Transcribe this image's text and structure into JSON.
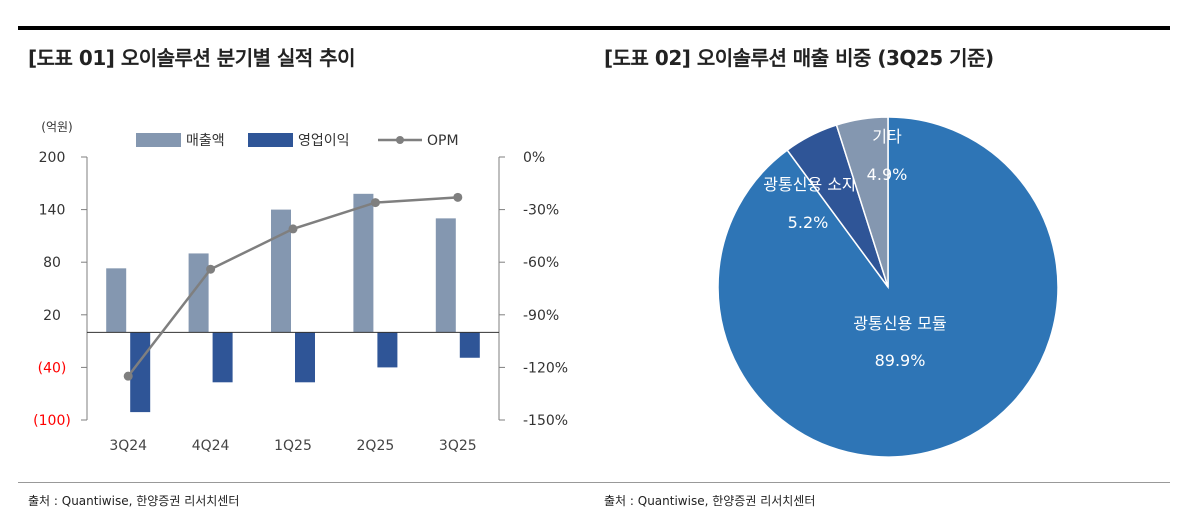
{
  "charts": {
    "left": {
      "title": "[도표 01] 오이솔루션 분기별 실적 추이",
      "source": "출처 : Quantiwise, 한양증권 리서치센터"
    },
    "right": {
      "title": "[도표 02] 오이솔루션 매출 비중 (3Q25 기준)",
      "source": "출처 : Quantiwise, 한양증권 리서치센터"
    }
  },
  "chart_data": [
    {
      "type": "bar",
      "title": "[도표 01] 오이솔루션 분기별 실적 추이",
      "unit_label": "(억원)",
      "categories": [
        "3Q24",
        "4Q24",
        "1Q25",
        "2Q25",
        "3Q25"
      ],
      "series": [
        {
          "name": "매출액",
          "kind": "bar",
          "axis": "left",
          "color": "#8497b0",
          "values": [
            73,
            90,
            140,
            158,
            130
          ]
        },
        {
          "name": "영업이익",
          "kind": "bar",
          "axis": "left",
          "color": "#2f5597",
          "values": [
            -91,
            -57,
            -57,
            -40,
            -29
          ]
        },
        {
          "name": "OPM",
          "kind": "line",
          "axis": "right",
          "color": "#7f7f7f",
          "values": [
            -125,
            -64,
            -41,
            -26,
            -23
          ]
        }
      ],
      "y_left": {
        "min": -100,
        "max": 200,
        "ticks": [
          200,
          140,
          80,
          20,
          -40,
          -100
        ],
        "tick_labels": [
          "200",
          "140",
          "80",
          "20",
          "(40)",
          "(100)"
        ],
        "negative_color": "#ff0000"
      },
      "y_right": {
        "min": -150,
        "max": 0,
        "ticks": [
          0,
          -30,
          -60,
          -90,
          -120,
          -150
        ],
        "tick_labels": [
          "0%",
          "-30%",
          "-60%",
          "-90%",
          "-120%",
          "-150%"
        ]
      },
      "legend": "top"
    },
    {
      "type": "pie",
      "title": "[도표 02] 오이솔루션 매출 비중 (3Q25 기준)",
      "slices": [
        {
          "name": "광통신용 모듈",
          "value": 89.9,
          "label": "89.9%",
          "color": "#2e75b6"
        },
        {
          "name": "광통신용 소자",
          "value": 5.2,
          "label": "5.2%",
          "color": "#2f5597"
        },
        {
          "name": "기타",
          "value": 4.9,
          "label": "4.9%",
          "color": "#8497b0"
        }
      ]
    }
  ]
}
